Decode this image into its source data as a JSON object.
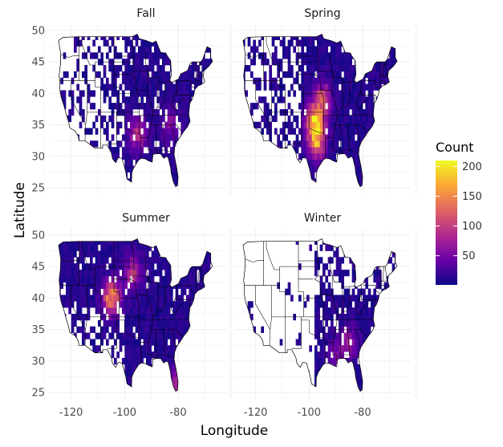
{
  "chart_data": {
    "type": "heatmap",
    "title": "",
    "xlabel": "Longitude",
    "ylabel": "Latitude",
    "xlim": [
      -128,
      -62
    ],
    "ylim": [
      24,
      51
    ],
    "x_ticks": [
      -120,
      -100,
      -80
    ],
    "y_ticks": [
      25,
      30,
      35,
      40,
      45,
      50
    ],
    "facets": [
      "Fall",
      "Spring",
      "Summer",
      "Winter"
    ],
    "grid": true,
    "legend": {
      "title": "Count",
      "placement": "right",
      "min": 1,
      "max": 210,
      "ticks": [
        50,
        100,
        150,
        200
      ],
      "colormap": "plasma",
      "colors": [
        "#0d0887",
        "#6a00a8",
        "#b12a90",
        "#e16462",
        "#fca636",
        "#f0f921"
      ]
    },
    "hotspots": {
      "Fall": [
        {
          "lon": -95,
          "lat": 33.5,
          "count": 90
        },
        {
          "lon": -83,
          "lat": 35,
          "count": 60
        }
      ],
      "Spring": [
        {
          "lon": -98,
          "lat": 35.5,
          "count": 210
        },
        {
          "lon": -97,
          "lat": 32.5,
          "count": 160
        },
        {
          "lon": -95,
          "lat": 39,
          "count": 120
        }
      ],
      "Summer": [
        {
          "lon": -105,
          "lat": 40,
          "count": 180
        },
        {
          "lon": -97,
          "lat": 44,
          "count": 100
        },
        {
          "lon": -80,
          "lat": 26.5,
          "count": 90
        }
      ],
      "Winter": [
        {
          "lon": -85,
          "lat": 33,
          "count": 70
        },
        {
          "lon": -90,
          "lat": 31,
          "count": 50
        }
      ]
    }
  }
}
